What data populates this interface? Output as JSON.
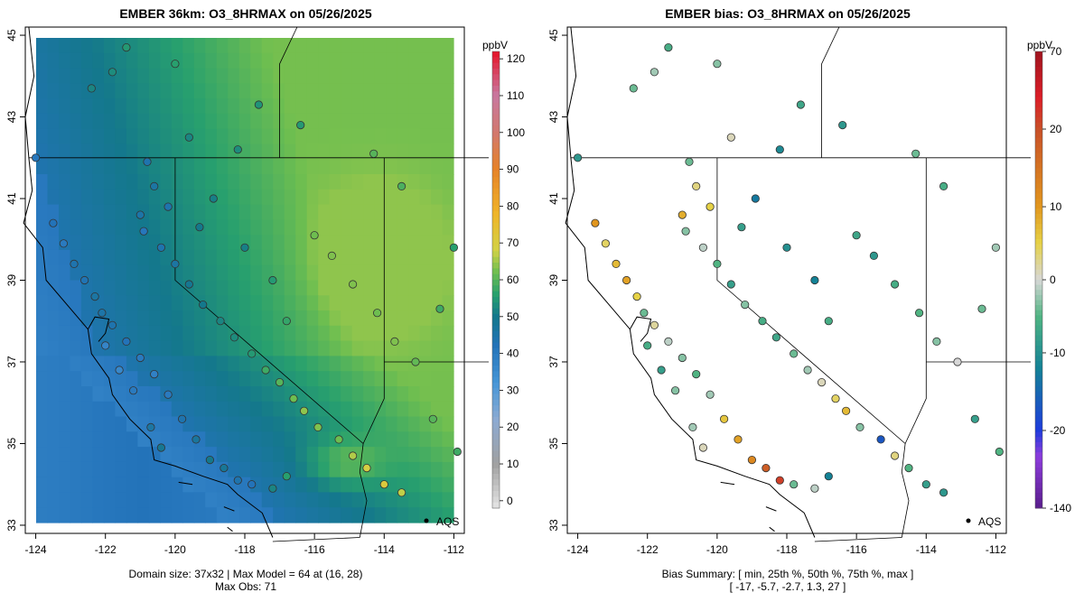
{
  "colors": {
    "frame": "#000000",
    "ocean": "#2d86c6",
    "coast": "#1e6fb1",
    "land_low": "#2aa36f",
    "land_high": "#c9d84a",
    "aqs": "#000000"
  },
  "left_panel": {
    "title": "EMBER 36km: O3_8HRMAX on 05/26/2025",
    "unit": "ppbV",
    "caption_line1": "Domain size: 37x32 | Max Model = 64 at (16, 28)",
    "caption_line2": "Max Obs: 71",
    "aqs_label": "AQS",
    "colorbar_ticks": [
      "0",
      "10",
      "20",
      "30",
      "40",
      "50",
      "60",
      "70",
      "80",
      "90",
      "100",
      "110",
      "120"
    ]
  },
  "right_panel": {
    "title": "EMBER bias: O3_8HRMAX on 05/26/2025",
    "unit": "ppbV",
    "caption_line1": "Bias Summary: [ min, 25th %, 50th %, 75th %, max ]",
    "caption_line2": "[ -17,   -5.7,   -2.7,   1.3,   27 ]",
    "aqs_label": "AQS",
    "colorbar_ticks": [
      "-140",
      "-20",
      "-10",
      "0",
      "10",
      "20",
      "70"
    ]
  },
  "chart_data": [
    {
      "type": "heatmap",
      "title": "EMBER 36km: O3_8HRMAX on 05/26/2025",
      "xlabel": "",
      "ylabel": "",
      "x_ticks": [
        "-124",
        "-122",
        "-120",
        "-118",
        "-116",
        "-114",
        "-112"
      ],
      "y_ticks": [
        "33",
        "35",
        "37",
        "39",
        "41",
        "43",
        "45"
      ],
      "xlim": [
        -124.3,
        -111.7
      ],
      "ylim": [
        32.8,
        45.2
      ],
      "grid_cols": 37,
      "grid_rows": 32,
      "colorbar": {
        "label": "ppbV",
        "min": -2,
        "max": 122
      },
      "max_model": 64,
      "max_obs": 71,
      "station_points": [
        [
          -124.0,
          42.0,
          41
        ],
        [
          -122.4,
          43.7,
          52
        ],
        [
          -121.8,
          44.1,
          53
        ],
        [
          -121.4,
          44.7,
          55
        ],
        [
          -120.0,
          44.3,
          56
        ],
        [
          -119.6,
          42.5,
          52
        ],
        [
          -120.8,
          41.9,
          44
        ],
        [
          -120.6,
          41.3,
          46
        ],
        [
          -120.2,
          40.8,
          44
        ],
        [
          -121.0,
          40.6,
          45
        ],
        [
          -120.9,
          40.2,
          41
        ],
        [
          -120.4,
          39.8,
          44
        ],
        [
          -120.0,
          39.4,
          46
        ],
        [
          -119.6,
          38.9,
          49
        ],
        [
          -119.2,
          38.4,
          50
        ],
        [
          -118.7,
          38.0,
          52
        ],
        [
          -118.3,
          37.6,
          53
        ],
        [
          -117.8,
          37.2,
          55
        ],
        [
          -117.4,
          36.8,
          58
        ],
        [
          -117.0,
          36.5,
          60
        ],
        [
          -116.6,
          36.1,
          62
        ],
        [
          -116.3,
          35.8,
          64
        ],
        [
          -115.9,
          35.4,
          63
        ],
        [
          -115.3,
          35.1,
          62
        ],
        [
          -114.9,
          34.7,
          66
        ],
        [
          -114.5,
          34.4,
          69
        ],
        [
          -114.0,
          34.0,
          71
        ],
        [
          -113.5,
          33.8,
          67
        ],
        [
          -116.8,
          34.2,
          56
        ],
        [
          -117.2,
          33.9,
          52
        ],
        [
          -117.8,
          34.0,
          42
        ],
        [
          -118.2,
          34.1,
          44
        ],
        [
          -118.6,
          34.4,
          48
        ],
        [
          -119.0,
          34.6,
          50
        ],
        [
          -119.4,
          35.1,
          47
        ],
        [
          -119.8,
          35.6,
          44
        ],
        [
          -120.2,
          36.2,
          40
        ],
        [
          -120.6,
          36.7,
          38
        ],
        [
          -121.0,
          37.1,
          40
        ],
        [
          -121.4,
          37.5,
          42
        ],
        [
          -121.8,
          37.9,
          44
        ],
        [
          -122.1,
          38.2,
          45
        ],
        [
          -122.3,
          38.6,
          46
        ],
        [
          -122.6,
          39.0,
          43
        ],
        [
          -122.9,
          39.4,
          44
        ],
        [
          -123.2,
          39.9,
          40
        ],
        [
          -123.5,
          40.4,
          42
        ],
        [
          -122.0,
          37.4,
          37
        ],
        [
          -121.6,
          36.8,
          36
        ],
        [
          -121.2,
          36.3,
          40
        ],
        [
          -120.7,
          35.4,
          46
        ],
        [
          -120.4,
          34.9,
          49
        ],
        [
          -116.0,
          40.1,
          62
        ],
        [
          -115.5,
          39.6,
          63
        ],
        [
          -114.9,
          38.9,
          63
        ],
        [
          -114.2,
          38.2,
          62
        ],
        [
          -113.7,
          37.5,
          63
        ],
        [
          -113.1,
          37.0,
          61
        ],
        [
          -112.4,
          38.3,
          58
        ],
        [
          -112.0,
          39.8,
          56
        ],
        [
          -113.5,
          41.3,
          59
        ],
        [
          -114.3,
          42.1,
          60
        ],
        [
          -116.4,
          42.8,
          55
        ],
        [
          -117.6,
          43.3,
          54
        ],
        [
          -118.2,
          42.2,
          53
        ],
        [
          -118.9,
          41.0,
          51
        ],
        [
          -119.3,
          40.3,
          50
        ],
        [
          -118.0,
          39.8,
          51
        ],
        [
          -117.2,
          39.0,
          55
        ],
        [
          -116.8,
          38.0,
          57
        ],
        [
          -112.6,
          35.6,
          60
        ],
        [
          -111.9,
          34.8,
          58
        ]
      ]
    },
    {
      "type": "scatter",
      "title": "EMBER bias: O3_8HRMAX on 05/26/2025",
      "x_ticks": [
        "-124",
        "-122",
        "-120",
        "-118",
        "-116",
        "-114",
        "-112"
      ],
      "y_ticks": [
        "33",
        "35",
        "37",
        "39",
        "41",
        "43",
        "45"
      ],
      "xlim": [
        -124.3,
        -111.7
      ],
      "ylim": [
        32.8,
        45.2
      ],
      "colorbar": {
        "label": "ppbV",
        "ticks": [
          -140,
          -20,
          -10,
          0,
          10,
          20,
          70
        ]
      },
      "bias_summary": {
        "min": -17,
        "p25": -5.7,
        "p50": -2.7,
        "p75": 1.3,
        "max": 27
      },
      "station_points": [
        [
          -124.0,
          42.0,
          -9
        ],
        [
          -122.4,
          43.7,
          -4
        ],
        [
          -121.8,
          44.1,
          -2
        ],
        [
          -121.4,
          44.7,
          -6
        ],
        [
          -120.0,
          44.3,
          -3
        ],
        [
          -119.6,
          42.5,
          1
        ],
        [
          -120.8,
          41.9,
          -4
        ],
        [
          -120.6,
          41.3,
          3
        ],
        [
          -120.2,
          40.8,
          5
        ],
        [
          -121.0,
          40.6,
          8
        ],
        [
          -120.9,
          40.2,
          -3
        ],
        [
          -120.4,
          39.8,
          -1
        ],
        [
          -120.0,
          39.4,
          -5
        ],
        [
          -119.6,
          38.9,
          -8
        ],
        [
          -119.2,
          38.4,
          -3
        ],
        [
          -118.7,
          38.0,
          -6
        ],
        [
          -118.3,
          37.6,
          -7
        ],
        [
          -117.8,
          37.2,
          -4
        ],
        [
          -117.4,
          36.8,
          -2
        ],
        [
          -117.0,
          36.5,
          1
        ],
        [
          -116.6,
          36.1,
          4
        ],
        [
          -116.3,
          35.8,
          7
        ],
        [
          -115.9,
          35.4,
          -3
        ],
        [
          -115.3,
          35.1,
          -17
        ],
        [
          -114.9,
          34.7,
          3
        ],
        [
          -114.5,
          34.4,
          -5
        ],
        [
          -114.0,
          34.0,
          -8
        ],
        [
          -113.5,
          33.8,
          -9
        ],
        [
          -116.8,
          34.2,
          -12
        ],
        [
          -117.2,
          33.9,
          -1
        ],
        [
          -117.8,
          34.0,
          -4
        ],
        [
          -118.2,
          34.1,
          27
        ],
        [
          -118.6,
          34.4,
          18
        ],
        [
          -119.0,
          34.6,
          12
        ],
        [
          -119.4,
          35.1,
          9
        ],
        [
          -119.8,
          35.6,
          6
        ],
        [
          -120.2,
          36.2,
          -2
        ],
        [
          -120.6,
          36.7,
          -5
        ],
        [
          -121.0,
          37.1,
          -3
        ],
        [
          -121.4,
          37.5,
          -1
        ],
        [
          -121.8,
          37.9,
          2
        ],
        [
          -122.1,
          38.2,
          -4
        ],
        [
          -122.3,
          38.6,
          5
        ],
        [
          -122.6,
          39.0,
          9
        ],
        [
          -122.9,
          39.4,
          7
        ],
        [
          -123.2,
          39.9,
          4
        ],
        [
          -123.5,
          40.4,
          10
        ],
        [
          -122.0,
          37.4,
          -6
        ],
        [
          -121.6,
          36.8,
          -8
        ],
        [
          -121.2,
          36.3,
          -3
        ],
        [
          -120.7,
          35.4,
          -2
        ],
        [
          -120.4,
          34.9,
          1
        ],
        [
          -116.0,
          40.1,
          -7
        ],
        [
          -115.5,
          39.6,
          -9
        ],
        [
          -114.9,
          38.9,
          -6
        ],
        [
          -114.2,
          38.2,
          -5
        ],
        [
          -113.7,
          37.5,
          -3
        ],
        [
          -113.1,
          37.0,
          0
        ],
        [
          -112.4,
          38.3,
          -4
        ],
        [
          -112.0,
          39.8,
          -2
        ],
        [
          -113.5,
          41.3,
          -6
        ],
        [
          -114.3,
          42.1,
          -4
        ],
        [
          -116.4,
          42.8,
          -9
        ],
        [
          -117.6,
          43.3,
          -7
        ],
        [
          -118.2,
          42.2,
          -11
        ],
        [
          -118.9,
          41.0,
          -13
        ],
        [
          -119.3,
          40.3,
          -8
        ],
        [
          -118.0,
          39.8,
          -10
        ],
        [
          -117.2,
          39.0,
          -12
        ],
        [
          -116.8,
          38.0,
          -6
        ],
        [
          -112.6,
          35.6,
          -8
        ],
        [
          -111.9,
          34.8,
          -5
        ]
      ]
    }
  ]
}
